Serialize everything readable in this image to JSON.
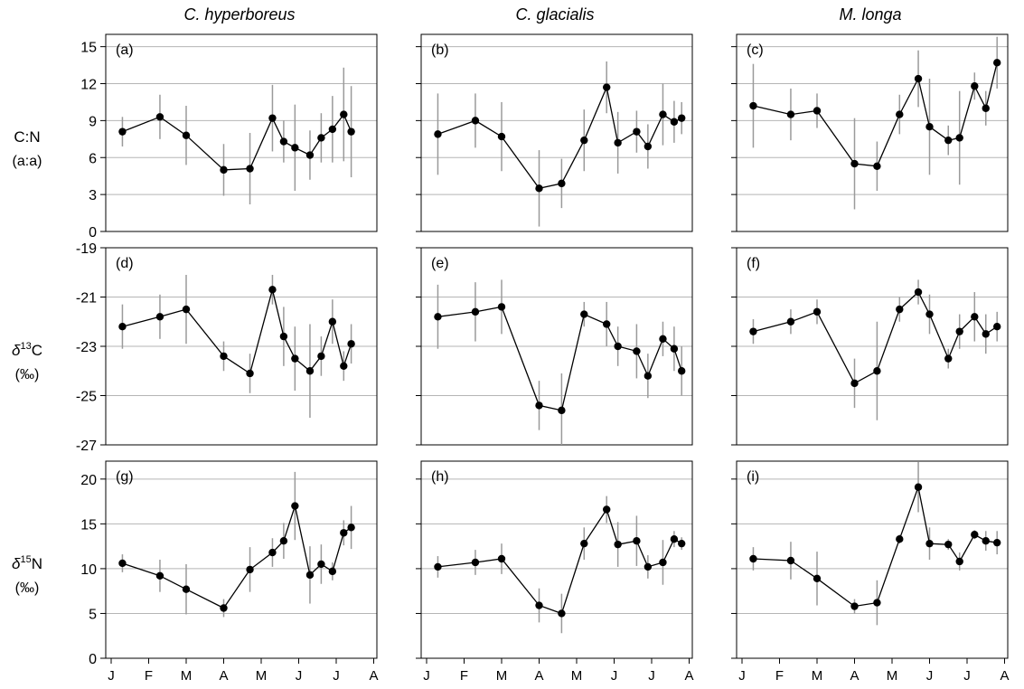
{
  "figure": {
    "columns": [
      "C. hyperboreus",
      "C. glacialis",
      "M. longa"
    ],
    "rows": [
      {
        "label_main": "C:N",
        "label_sub": "(a:a)"
      },
      {
        "label_main": "δ13C",
        "label_sub": "(‰)"
      },
      {
        "label_main": "δ15N",
        "label_sub": "(‰)"
      }
    ],
    "x_month_labels": [
      "J",
      "F",
      "M",
      "A",
      "M",
      "J",
      "J",
      "A"
    ]
  },
  "chart_data": [
    {
      "type": "line",
      "panel_label": "(a)",
      "species": "C. hyperboreus",
      "variable": "C:N",
      "ylim": [
        0,
        16
      ],
      "yticks": [
        0,
        3,
        6,
        9,
        12,
        15
      ],
      "grid": true,
      "x": [
        0.3,
        1.3,
        2.0,
        3.0,
        3.7,
        4.3,
        4.6,
        4.9,
        5.3,
        5.6,
        5.9,
        6.2,
        6.4,
        6.6
      ],
      "y": [
        8.1,
        9.3,
        7.8,
        5.0,
        5.1,
        9.2,
        7.3,
        6.8,
        6.2,
        7.6,
        8.3,
        9.5,
        8.1,
        null
      ],
      "err": [
        1.2,
        1.8,
        2.4,
        2.1,
        2.9,
        2.7,
        1.7,
        3.5,
        2.0,
        2.0,
        2.7,
        3.8,
        3.7,
        null
      ]
    },
    {
      "type": "line",
      "panel_label": "(b)",
      "species": "C. glacialis",
      "variable": "C:N",
      "ylim": [
        0,
        16
      ],
      "yticks": [
        0,
        3,
        6,
        9,
        12,
        15
      ],
      "grid": true,
      "x": [
        0.3,
        1.3,
        2.0,
        3.0,
        3.6,
        4.2,
        4.8,
        5.1,
        5.6,
        5.9,
        6.3,
        6.6,
        6.8
      ],
      "y": [
        7.9,
        9.0,
        7.7,
        3.5,
        3.9,
        7.4,
        11.7,
        7.2,
        8.1,
        6.9,
        9.5,
        8.9,
        9.2
      ],
      "err": [
        3.3,
        2.2,
        2.8,
        3.1,
        2.0,
        2.5,
        2.1,
        2.5,
        1.7,
        1.8,
        2.5,
        1.7,
        1.3
      ]
    },
    {
      "type": "line",
      "panel_label": "(c)",
      "species": "M. longa",
      "variable": "C:N",
      "ylim": [
        0,
        16
      ],
      "yticks": [
        0,
        3,
        6,
        9,
        12,
        15
      ],
      "grid": true,
      "x": [
        0.3,
        1.3,
        2.0,
        3.0,
        3.6,
        4.2,
        4.7,
        5.0,
        5.5,
        5.8,
        6.2,
        6.5,
        6.8
      ],
      "y": [
        10.2,
        9.5,
        9.8,
        5.5,
        5.3,
        9.5,
        12.4,
        8.5,
        7.4,
        7.6,
        11.8,
        10.0,
        13.7
      ],
      "err": [
        3.4,
        2.1,
        1.4,
        3.7,
        2.0,
        1.6,
        2.3,
        3.9,
        1.2,
        3.8,
        1.1,
        1.4,
        2.1
      ]
    },
    {
      "type": "line",
      "panel_label": "(d)",
      "species": "C. hyperboreus",
      "variable": "δ13C",
      "ylim": [
        -27,
        -19
      ],
      "yticks": [
        -27,
        -25,
        -23,
        -21,
        -19
      ],
      "grid": true,
      "x": [
        0.3,
        1.3,
        2.0,
        3.0,
        3.7,
        4.3,
        4.6,
        4.9,
        5.3,
        5.6,
        5.9,
        6.2,
        6.4
      ],
      "y": [
        -22.2,
        -21.8,
        -21.5,
        -23.4,
        -24.1,
        -20.7,
        -22.6,
        -23.5,
        -24.0,
        -23.4,
        -22.0,
        -23.8,
        -22.9
      ],
      "err": [
        0.9,
        0.9,
        1.4,
        0.6,
        0.8,
        0.6,
        1.2,
        1.3,
        1.9,
        0.8,
        0.9,
        0.6,
        0.8
      ]
    },
    {
      "type": "line",
      "panel_label": "(e)",
      "species": "C. glacialis",
      "variable": "δ13C",
      "ylim": [
        -27,
        -19
      ],
      "yticks": [
        -27,
        -25,
        -23,
        -21,
        -19
      ],
      "grid": true,
      "x": [
        0.3,
        1.3,
        2.0,
        3.0,
        3.6,
        4.2,
        4.8,
        5.1,
        5.6,
        5.9,
        6.3,
        6.6,
        6.8
      ],
      "y": [
        -21.8,
        -21.6,
        -21.4,
        -25.4,
        -25.6,
        -21.7,
        -22.1,
        -23.0,
        -23.2,
        -24.2,
        -22.7,
        -23.1,
        -24.0
      ],
      "err": [
        1.3,
        1.2,
        1.1,
        1.0,
        1.5,
        0.5,
        0.9,
        0.8,
        1.1,
        0.9,
        0.7,
        0.9,
        1.0
      ]
    },
    {
      "type": "line",
      "panel_label": "(f)",
      "species": "M. longa",
      "variable": "δ13C",
      "ylim": [
        -27,
        -19
      ],
      "yticks": [
        -27,
        -25,
        -23,
        -21,
        -19
      ],
      "grid": true,
      "x": [
        0.3,
        1.3,
        2.0,
        3.0,
        3.6,
        4.2,
        4.7,
        5.0,
        5.5,
        5.8,
        6.2,
        6.5,
        6.8
      ],
      "y": [
        -22.4,
        -22.0,
        -21.6,
        -24.5,
        -24.0,
        -21.5,
        -20.8,
        -21.7,
        -23.5,
        -22.4,
        -21.8,
        -22.5,
        -22.2
      ],
      "err": [
        0.5,
        0.5,
        0.5,
        1.0,
        2.0,
        0.5,
        0.5,
        0.8,
        0.4,
        0.7,
        1.0,
        0.8,
        0.6
      ]
    },
    {
      "type": "line",
      "panel_label": "(g)",
      "species": "C. hyperboreus",
      "variable": "δ15N",
      "ylim": [
        0,
        22
      ],
      "yticks": [
        0,
        5,
        10,
        15,
        20
      ],
      "grid": true,
      "x": [
        0.3,
        1.3,
        2.0,
        3.0,
        3.7,
        4.3,
        4.6,
        4.9,
        5.3,
        5.6,
        5.9,
        6.2,
        6.4
      ],
      "y": [
        10.6,
        9.2,
        7.7,
        5.6,
        9.9,
        11.8,
        13.1,
        17.0,
        9.3,
        10.5,
        9.7,
        14.0,
        14.6
      ],
      "err": [
        1.0,
        1.8,
        2.8,
        1.0,
        2.5,
        1.6,
        2.0,
        3.8,
        3.2,
        2.2,
        1.0,
        1.4,
        2.4
      ]
    },
    {
      "type": "line",
      "panel_label": "(h)",
      "species": "C. glacialis",
      "variable": "δ15N",
      "ylim": [
        0,
        22
      ],
      "yticks": [
        0,
        5,
        10,
        15,
        20
      ],
      "grid": true,
      "x": [
        0.3,
        1.3,
        2.0,
        3.0,
        3.6,
        4.2,
        4.8,
        5.1,
        5.6,
        5.9,
        6.3,
        6.6,
        6.8
      ],
      "y": [
        10.2,
        10.7,
        11.1,
        5.9,
        5.0,
        12.8,
        16.6,
        12.7,
        13.1,
        10.2,
        10.7,
        13.3,
        12.8
      ],
      "err": [
        1.2,
        1.4,
        1.7,
        1.9,
        2.2,
        1.8,
        1.5,
        2.5,
        2.8,
        1.3,
        2.5,
        0.9,
        0.7
      ]
    },
    {
      "type": "line",
      "panel_label": "(i)",
      "species": "M. longa",
      "variable": "δ15N",
      "ylim": [
        0,
        22
      ],
      "yticks": [
        0,
        5,
        10,
        15,
        20
      ],
      "grid": true,
      "x": [
        0.3,
        1.3,
        2.0,
        3.0,
        3.6,
        4.2,
        4.7,
        5.0,
        5.5,
        5.8,
        6.2,
        6.5,
        6.8
      ],
      "y": [
        11.1,
        10.9,
        8.9,
        5.8,
        6.2,
        13.3,
        19.1,
        12.8,
        12.7,
        10.8,
        13.8,
        13.1,
        12.9
      ],
      "err": [
        1.3,
        2.1,
        3.0,
        0.8,
        2.5,
        0.5,
        2.8,
        1.8,
        0.6,
        1.0,
        0.5,
        1.1,
        1.3
      ]
    }
  ]
}
